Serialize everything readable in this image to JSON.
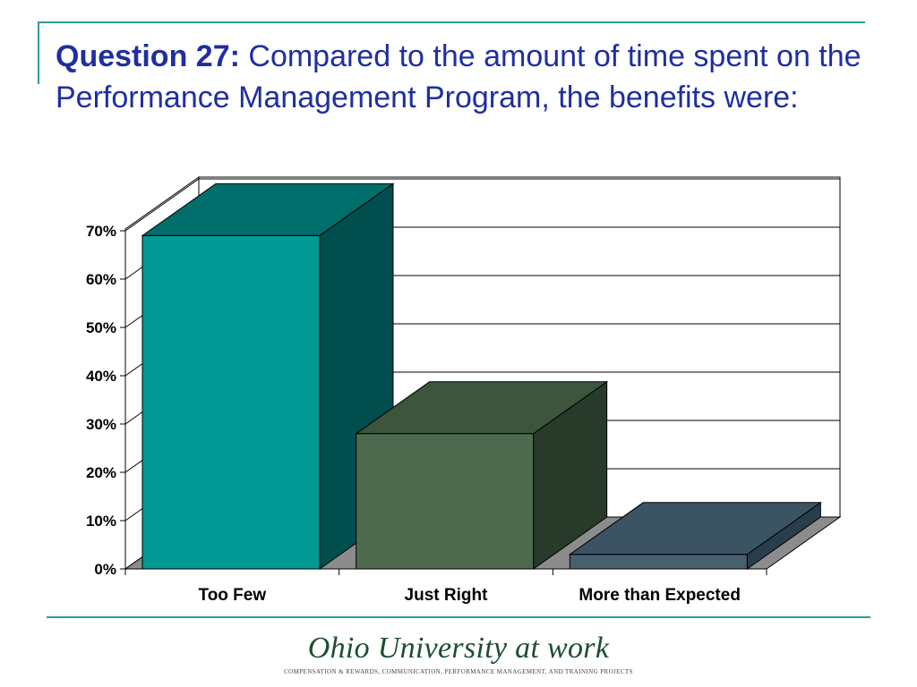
{
  "slide": {
    "title_prefix": "Question 27:",
    "title_text": " Compared to the amount of time spent on the Performance Management Program, the benefits were:"
  },
  "footer": {
    "logo": "Ohio University at work",
    "subtitle": "Compensation & Rewards, Communication, Performance Management, and Training Projects"
  },
  "colors": {
    "accent_rule": "#2a9d96",
    "title": "#1f2f9f"
  },
  "chart_data": {
    "type": "bar",
    "style": "3d",
    "categories": [
      "Too Few",
      "Just Right",
      "More than Expected"
    ],
    "values": [
      69,
      28,
      3
    ],
    "y_ticks": [
      "0%",
      "10%",
      "20%",
      "30%",
      "40%",
      "50%",
      "60%",
      "70%"
    ],
    "ylim": [
      0,
      70
    ],
    "grid": true,
    "bar_colors": [
      {
        "front": "#009994",
        "top": "#006e6a",
        "side": "#004f4e"
      },
      {
        "front": "#4e6a4e",
        "top": "#3c553c",
        "side": "#283a2a"
      },
      {
        "front": "#466070",
        "top": "#3a5464",
        "side": "#2a3d4b"
      }
    ]
  }
}
